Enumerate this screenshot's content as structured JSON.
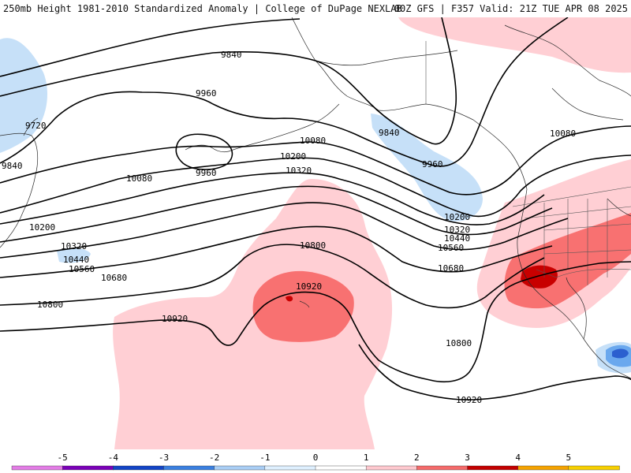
{
  "header": {
    "title_left": "250mb Height 1981-2010 Standardized Anomaly | College of DuPage NEXLAB",
    "title_right": "00Z GFS | F357 Valid: 21Z TUE APR 08 2025"
  },
  "contour_labels": {
    "c9840_a": "9840",
    "c9840_b": "9840",
    "c9840_c": "9840",
    "c9720": "9720",
    "c9960_a": "9960",
    "c9960_b": "9960",
    "c9960_c": "9960",
    "c10080_a": "10080",
    "c10080_b": "10080",
    "c10080_c": "10080",
    "c10200_a": "10200",
    "c10200_b": "10200",
    "c10200_c": "10200",
    "c10320_a": "10320",
    "c10320_b": "10320",
    "c10320_c": "10320",
    "c10440_a": "10440",
    "c10440_b": "10440",
    "c10560_a": "10560",
    "c10560_b": "10560",
    "c10680_a": "10680",
    "c10680_b": "10680",
    "c10800_a": "10800",
    "c10800_b": "10800",
    "c10800_c": "10800",
    "c10920_a": "10920",
    "c10920_b": "10920",
    "c10920_c": "10920"
  },
  "legend": {
    "ticks": [
      "-5",
      "-4",
      "-3",
      "-2",
      "-1",
      "0",
      "1",
      "2",
      "3",
      "4",
      "5"
    ],
    "colors": [
      "#e37ce6",
      "#7a00b8",
      "#1244c6",
      "#3a7fe0",
      "#a9cef5",
      "#dff0ff",
      "#ffffff",
      "#ffc9cf",
      "#f56a6a",
      "#c30000",
      "#f5a300",
      "#f7d000"
    ]
  },
  "colors": {
    "pos1": "#ffcfd4",
    "pos2": "#f87171",
    "pos3": "#c80000",
    "neg1": "#c6e0f8",
    "neg2": "#6aa8ee",
    "neg3": "#2b5fcf"
  }
}
